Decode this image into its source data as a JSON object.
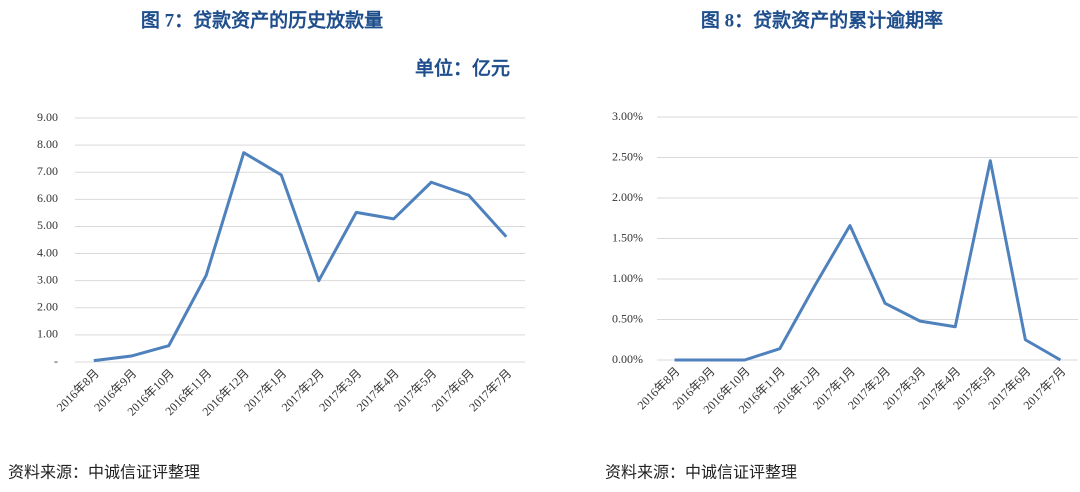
{
  "chart_data": [
    {
      "type": "line",
      "title": "图 7：贷款资产的历史放款量",
      "unit": "单位：亿元",
      "source": "资料来源：中诚信证评整理",
      "categories": [
        "2016年8月",
        "2016年9月",
        "2016年10月",
        "2016年11月",
        "2016年12月",
        "2017年1月",
        "2017年2月",
        "2017年3月",
        "2017年4月",
        "2017年5月",
        "2017年6月",
        "2017年7月"
      ],
      "values": [
        0.05,
        0.22,
        0.6,
        3.2,
        7.72,
        6.9,
        3.0,
        5.52,
        5.28,
        6.63,
        6.15,
        4.62
      ],
      "color": "#4f81bd",
      "ylim": [
        0,
        9
      ],
      "yticks": [
        {
          "value": 0,
          "label": "-"
        },
        {
          "value": 1,
          "label": "1.00"
        },
        {
          "value": 2,
          "label": "2.00"
        },
        {
          "value": 3,
          "label": "3.00"
        },
        {
          "value": 4,
          "label": "4.00"
        },
        {
          "value": 5,
          "label": "5.00"
        },
        {
          "value": 6,
          "label": "6.00"
        },
        {
          "value": 7,
          "label": "7.00"
        },
        {
          "value": 8,
          "label": "8.00"
        },
        {
          "value": 9,
          "label": "9.00"
        }
      ],
      "grid": true
    },
    {
      "type": "line",
      "title": "图 8：贷款资产的累计逾期率",
      "source": "资料来源：中诚信证评整理",
      "categories": [
        "2016年8月",
        "2016年9月",
        "2016年10月",
        "2016年11月",
        "2016年12月",
        "2017年1月",
        "2017年2月",
        "2017年3月",
        "2017年4月",
        "2017年5月",
        "2017年6月",
        "2017年7月"
      ],
      "values": [
        0,
        0,
        0,
        0.14,
        0.92,
        1.66,
        0.7,
        0.48,
        0.41,
        2.46,
        0.25,
        0
      ],
      "color": "#4f81bd",
      "ylim": [
        0,
        3
      ],
      "yticks": [
        {
          "value": 0,
          "label": "0.00%"
        },
        {
          "value": 0.5,
          "label": "0.50%"
        },
        {
          "value": 1,
          "label": "1.00%"
        },
        {
          "value": 1.5,
          "label": "1.50%"
        },
        {
          "value": 2,
          "label": "2.00%"
        },
        {
          "value": 2.5,
          "label": "2.50%"
        },
        {
          "value": 3,
          "label": "3.00%"
        }
      ],
      "grid": true
    }
  ]
}
